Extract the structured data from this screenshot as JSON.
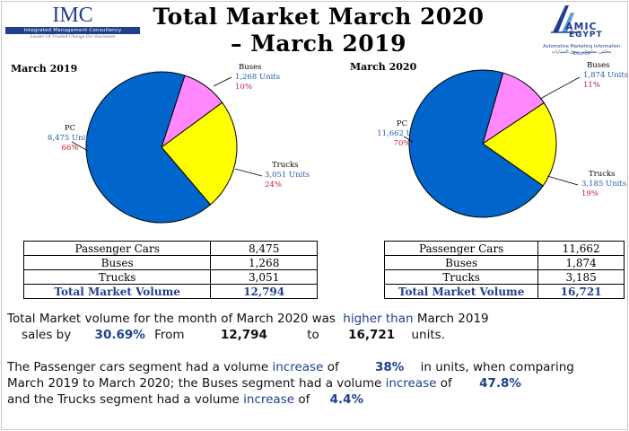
{
  "header": {
    "title_line1": "Total Market March 2020",
    "title_line2": "– March 2019"
  },
  "logos": {
    "imc": {
      "word": "IMC",
      "bar_text": "Integrated Management Consultancy",
      "tagline": "Leader Of Trusted Change For Successes"
    },
    "amic": {
      "word": "AMIC",
      "word2": "EGYPT",
      "subtitle": "Automotive Marketing Information Council",
      "subtitle_ar": "مجلس معلومات سوق السيارات"
    }
  },
  "colors": {
    "pc": "#0066cc",
    "trucks": "#ffff00",
    "buses": "#ff88ff",
    "label_blue": "#1f5fa8",
    "pct_red": "#c0203a",
    "title_navy": "#1f3f8f"
  },
  "chart_data": [
    {
      "type": "pie",
      "title": "March 2019",
      "slices": [
        {
          "name": "PC",
          "value": 8475,
          "units_label": "8,475 Units",
          "pct_label": "66%"
        },
        {
          "name": "Buses",
          "value": 1268,
          "units_label": "1,268 Units",
          "pct_label": "10%"
        },
        {
          "name": "Trucks",
          "value": 3051,
          "units_label": "3,051 Units",
          "pct_label": "24%"
        }
      ]
    },
    {
      "type": "pie",
      "title": "March 2020",
      "slices": [
        {
          "name": "PC",
          "value": 11662,
          "units_label": "11,662 Units",
          "pct_label": "70%"
        },
        {
          "name": "Buses",
          "value": 1874,
          "units_label": "1,874 Units",
          "pct_label": "11%"
        },
        {
          "name": "Trucks",
          "value": 3185,
          "units_label": "3,185 Units",
          "pct_label": "19%"
        }
      ]
    },
    {
      "type": "table",
      "title": "March 2019",
      "rows": [
        [
          "Passenger Cars",
          "8,475"
        ],
        [
          "Buses",
          "1,268"
        ],
        [
          "Trucks",
          "3,051"
        ],
        [
          "Total Market Volume",
          "12,794"
        ]
      ]
    },
    {
      "type": "table",
      "title": "March 2020",
      "rows": [
        [
          "Passenger Cars",
          "11,662"
        ],
        [
          "Buses",
          "1,874"
        ],
        [
          "Trucks",
          "3,185"
        ],
        [
          "Total Market Volume",
          "16,721"
        ]
      ]
    }
  ],
  "summary": {
    "p1_a": "Total Market volume for the month of March 2020 was",
    "p1_b": "higher than",
    "p1_c": "March 2019",
    "p1_d": "sales by",
    "p1_e": "30.69%",
    "p1_f": "From",
    "p1_g": "12,794",
    "p1_h": "to",
    "p1_i": "16,721",
    "p1_j": "units.",
    "p2_a": "The Passenger cars segment had a volume",
    "p2_b": "increase",
    "p2_c": "of",
    "p2_d": "38%",
    "p2_e": "in units, when comparing",
    "p2_f": "March 2019 to March 2020; the Buses segment had a volume",
    "p2_g": "increase",
    "p2_h": "of",
    "p2_i": "47.8%",
    "p2_j": "and the Trucks segment had a volume",
    "p2_k": "increase",
    "p2_l": "of",
    "p2_m": "4.4%"
  }
}
